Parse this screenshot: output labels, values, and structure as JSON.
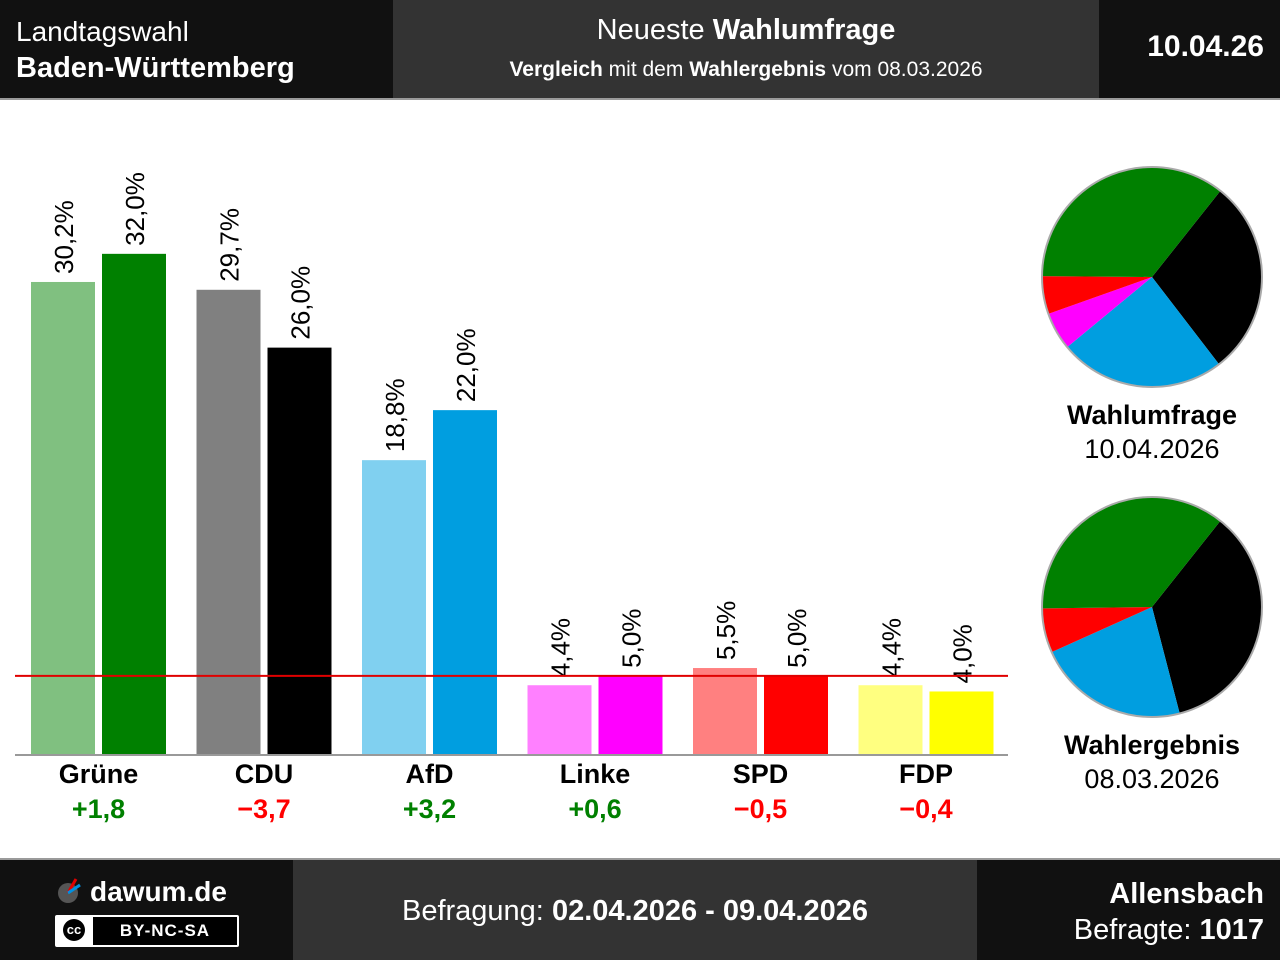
{
  "header": {
    "title_line1": "Landtagswahl",
    "title_line2": "Baden-Württemberg",
    "subtitle_prefix": "Neueste ",
    "subtitle_bold": "Wahlumfrage",
    "compare_bold1": "Vergleich",
    "compare_text1": " mit dem ",
    "compare_bold2": "Wahlergebnis",
    "compare_text2": " vom 08.03.2026",
    "date": "10.04.26"
  },
  "chart_data": [
    {
      "type": "bar",
      "categories": [
        "Grüne",
        "CDU",
        "AfD",
        "Linke",
        "SPD",
        "FDP"
      ],
      "series": [
        {
          "values": [
            30.2,
            29.7,
            18.8,
            4.4,
            5.5,
            4.4
          ],
          "labels": [
            "30,2%",
            "29,7%",
            "18,8%",
            "4,4%",
            "5,5%",
            "4,4%"
          ]
        },
        {
          "values": [
            32.0,
            26.0,
            22.0,
            5.0,
            5.0,
            4.0
          ],
          "labels": [
            "32,0%",
            "26,0%",
            "22,0%",
            "5,0%",
            "5,0%",
            "4,0%"
          ]
        }
      ],
      "colors_light": [
        "#80c080",
        "#808080",
        "#80d0f0",
        "#ff80ff",
        "#ff8080",
        "#ffff80"
      ],
      "colors_dark": [
        "#008000",
        "#000000",
        "#009ee0",
        "#ff00ff",
        "#ff0000",
        "#ffff00"
      ],
      "diffs": [
        "+1,8",
        "−3,7",
        "+3,2",
        "+0,6",
        "−0,5",
        "−0,4"
      ],
      "diff_colors": [
        "#008000",
        "#ff0000",
        "#008000",
        "#008000",
        "#ff0000",
        "#ff0000"
      ],
      "threshold": 5,
      "ylim": [
        0,
        36
      ]
    },
    {
      "type": "pie",
      "title": "Wahlumfrage",
      "subtitle": "10.04.2026",
      "slices": [
        {
          "name": "CDU",
          "value": 26.0,
          "color": "#000000"
        },
        {
          "name": "AfD",
          "value": 22.0,
          "color": "#009ee0"
        },
        {
          "name": "Linke",
          "value": 5.0,
          "color": "#ff00ff"
        },
        {
          "name": "SPD",
          "value": 5.0,
          "color": "#ff0000"
        },
        {
          "name": "Grüne",
          "value": 32.0,
          "color": "#008000"
        }
      ]
    },
    {
      "type": "pie",
      "title": "Wahlergebnis",
      "subtitle": "08.03.2026",
      "slices": [
        {
          "name": "CDU",
          "value": 29.7,
          "color": "#000000"
        },
        {
          "name": "AfD",
          "value": 18.8,
          "color": "#009ee0"
        },
        {
          "name": "SPD",
          "value": 5.5,
          "color": "#ff0000"
        },
        {
          "name": "Grüne",
          "value": 30.2,
          "color": "#008000"
        }
      ]
    }
  ],
  "footer": {
    "brand": "dawum.de",
    "license": "BY-NC-SA",
    "license_icon": "cc",
    "survey_label": "Befragung: ",
    "survey_dates": "02.04.2026 - 09.04.2026",
    "institute": "Allensbach",
    "respondents_label": "Befragte: ",
    "respondents": "1017"
  }
}
